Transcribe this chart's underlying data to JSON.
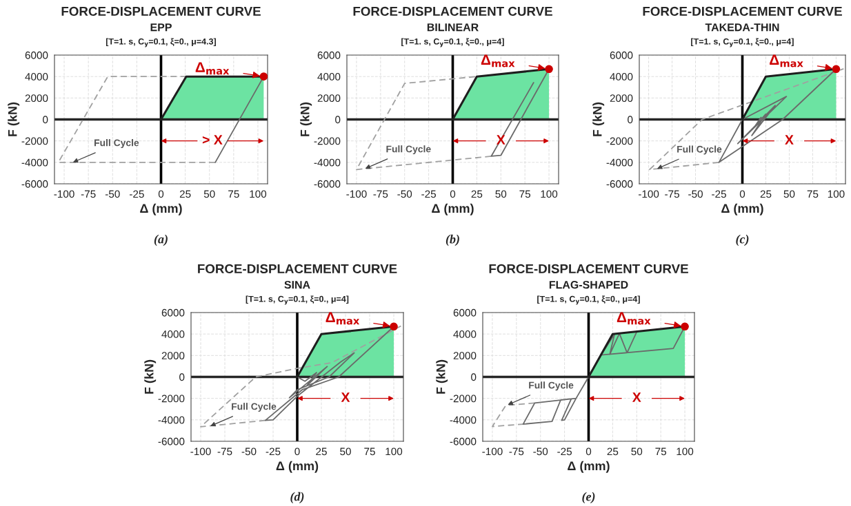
{
  "chart_data": [
    {
      "type": "line",
      "title": "FORCE-DISPLACEMENT CURVE",
      "subtitle": "EPP",
      "xlabel": "Δ (mm)",
      "ylabel": "F (kN)",
      "xlim": [
        -110,
        110
      ],
      "ylim": [
        -6000,
        6000
      ],
      "xticks": [
        -100,
        -75,
        -50,
        -25,
        0,
        25,
        50,
        75,
        100
      ],
      "yticks": [
        -6000,
        -4000,
        -2000,
        0,
        2000,
        4000,
        6000
      ],
      "grid": true,
      "ref_lines": [
        {
          "axis": "x",
          "value": 0,
          "color": "#000000"
        },
        {
          "axis": "y",
          "value": 0,
          "color": "#262626"
        }
      ],
      "annotations": [
        "[T=1. s, C$_{y}$=0.1, ξ=0., μ=4.3]",
        "(a)",
        "> X",
        {
          "text": "Δ$_{max}$",
          "x": 106,
          "y": 4000
        },
        {
          "text": "Full Cycle",
          "x": -91,
          "y": -4000
        }
      ],
      "series": [
        {
          "type": "area",
          "color": "#6ce3a2",
          "x": [
            0,
            26,
            106
          ],
          "values": [
            0,
            4000,
            4000
          ]
        },
        {
          "color": "#a0a0a0",
          "line_style": "dashed",
          "x": [
            56,
            -106,
            -55,
            26
          ],
          "values": [
            -4000,
            -4000,
            4000,
            4000
          ]
        },
        {
          "color": "#6a6a6a",
          "line_style": "solid",
          "x": [
            106,
            56
          ],
          "values": [
            4000,
            -4000
          ]
        },
        {
          "type": "scatter",
          "color": "#cc0000",
          "marker": "circle",
          "x": [
            106
          ],
          "values": [
            4000
          ]
        }
      ]
    },
    {
      "type": "line",
      "title": "FORCE-DISPLACEMENT CURVE",
      "subtitle": "BILINEAR",
      "xlabel": "Δ (mm)",
      "ylabel": "F (kN)",
      "xlim": [
        -110,
        110
      ],
      "ylim": [
        -6000,
        6000
      ],
      "xticks": [
        -100,
        -75,
        -50,
        -25,
        0,
        25,
        50,
        75,
        100
      ],
      "yticks": [
        -6000,
        -4000,
        -2000,
        0,
        2000,
        4000,
        6000
      ],
      "grid": true,
      "ref_lines": [
        {
          "axis": "x",
          "value": 0,
          "color": "#000000"
        },
        {
          "axis": "y",
          "value": 0,
          "color": "#262626"
        }
      ],
      "annotations": [
        "[T=1. s, C$_{y}$=0.1, ξ=0., μ=4]",
        "(b)",
        "X",
        {
          "text": "Δ$_{max}$",
          "x": 100,
          "y": 4700
        },
        {
          "text": "Full Cycle",
          "x": -91,
          "y": -4580
        }
      ],
      "series": [
        {
          "type": "area",
          "color": "#6ce3a2",
          "x": [
            0,
            25,
            100
          ],
          "values": [
            0,
            4000,
            4700
          ]
        },
        {
          "color": "#a0a0a0",
          "line_style": "dashed",
          "x": [
            40,
            -100,
            -50,
            25
          ],
          "values": [
            -3430,
            -4670,
            3360,
            4000
          ]
        },
        {
          "color": "#6a6a6a",
          "line_style": "solid",
          "x": [
            100,
            50,
            40,
            84
          ],
          "values": [
            4700,
            -3350,
            -3430,
            3430
          ]
        },
        {
          "type": "scatter",
          "color": "#cc0000",
          "marker": "circle",
          "x": [
            100
          ],
          "values": [
            4700
          ]
        }
      ]
    },
    {
      "type": "line",
      "title": "FORCE-DISPLACEMENT CURVE",
      "subtitle": "TAKEDA-THIN",
      "xlabel": "Δ (mm)",
      "ylabel": "F (kN)",
      "xlim": [
        -110,
        110
      ],
      "ylim": [
        -6000,
        6000
      ],
      "xticks": [
        -100,
        -75,
        -50,
        -25,
        0,
        25,
        50,
        75,
        100
      ],
      "yticks": [
        -6000,
        -4000,
        -2000,
        0,
        2000,
        4000,
        6000
      ],
      "grid": true,
      "ref_lines": [
        {
          "axis": "x",
          "value": 0,
          "color": "#000000"
        },
        {
          "axis": "y",
          "value": 0,
          "color": "#262626"
        }
      ],
      "annotations": [
        "[T=1. s, C$_{y}$=0.1, ξ=0., μ=4]",
        "(c)",
        "X",
        {
          "text": "Δ$_{max}$",
          "x": 100,
          "y": 4700
        },
        {
          "text": "Full Cycle",
          "x": -91,
          "y": -4600
        }
      ],
      "series": [
        {
          "type": "area",
          "color": "#6ce3a2",
          "x": [
            0,
            25,
            100
          ],
          "values": [
            0,
            4000,
            4700
          ]
        },
        {
          "color": "#a0a0a0",
          "line_style": "dashed",
          "x": [
            -25,
            -99,
            -43,
            108
          ],
          "values": [
            -4000,
            -4670,
            0,
            4720
          ]
        },
        {
          "color": "#6a6a6a",
          "line_style": "solid",
          "x": [
            100,
            43,
            -25,
            0,
            47,
            -5,
            35,
            10,
            25,
            12,
            20
          ],
          "values": [
            4700,
            0,
            -4000,
            0,
            2140,
            -2250,
            1300,
            -1500,
            500,
            -800,
            200
          ]
        },
        {
          "type": "scatter",
          "color": "#cc0000",
          "marker": "circle",
          "x": [
            100
          ],
          "values": [
            4700
          ]
        }
      ]
    },
    {
      "type": "line",
      "title": "FORCE-DISPLACEMENT CURVE",
      "subtitle": "SINA",
      "xlabel": "Δ (mm)",
      "ylabel": "F (kN)",
      "xlim": [
        -110,
        110
      ],
      "ylim": [
        -6000,
        6000
      ],
      "xticks": [
        -100,
        -75,
        -50,
        -25,
        0,
        25,
        50,
        75,
        100
      ],
      "yticks": [
        -6000,
        -4000,
        -2000,
        0,
        2000,
        4000,
        6000
      ],
      "grid": true,
      "ref_lines": [
        {
          "axis": "x",
          "value": 0,
          "color": "#000000"
        },
        {
          "axis": "y",
          "value": 0,
          "color": "#262626"
        }
      ],
      "annotations": [
        "[T=1. s, C$_{y}$=0.1, ξ=0., μ=4]",
        "(d)",
        "X",
        {
          "text": "Δ$_{max}$",
          "x": 100,
          "y": 4700
        },
        {
          "text": "Full Cycle",
          "x": -90,
          "y": -4580
        }
      ],
      "series": [
        {
          "type": "area",
          "color": "#6ce3a2",
          "x": [
            0,
            25,
            100
          ],
          "values": [
            0,
            4000,
            4700
          ]
        },
        {
          "color": "#a0a0a0",
          "line_style": "dashed",
          "x": [
            -33,
            -100,
            -43,
            0,
            36,
            108
          ],
          "values": [
            -4050,
            -4650,
            0,
            800,
            1330,
            4770
          ]
        },
        {
          "color": "#6a6a6a",
          "line_style": "solid",
          "x": [
            100,
            43,
            5,
            -33,
            -25,
            0,
            45,
            59,
            33,
            0,
            -8,
            31,
            10,
            20,
            8,
            0
          ],
          "values": [
            4700,
            0,
            -1200,
            -4050,
            -4000,
            -1800,
            1400,
            2240,
            0,
            -1200,
            -1930,
            970,
            -800,
            400,
            -400,
            0
          ]
        },
        {
          "type": "scatter",
          "color": "#cc0000",
          "marker": "circle",
          "x": [
            100
          ],
          "values": [
            4700
          ]
        }
      ]
    },
    {
      "type": "line",
      "title": "FORCE-DISPLACEMENT CURVE",
      "subtitle": "FLAG-SHAPED",
      "xlabel": "Δ (mm)",
      "ylabel": "F (kN)",
      "xlim": [
        -110,
        110
      ],
      "ylim": [
        -6000,
        6000
      ],
      "xticks": [
        -100,
        -75,
        -50,
        -25,
        0,
        25,
        50,
        75,
        100
      ],
      "yticks": [
        -6000,
        -4000,
        -2000,
        0,
        2000,
        4000,
        6000
      ],
      "grid": true,
      "ref_lines": [
        {
          "axis": "x",
          "value": 0,
          "color": "#000000"
        },
        {
          "axis": "y",
          "value": 0,
          "color": "#262626"
        }
      ],
      "annotations": [
        "[T=1. s, C$_{y}$=0.1, ξ=0., μ=4]",
        "(e)",
        "X",
        {
          "text": "Δ$_{max}$",
          "x": 100,
          "y": 4700
        },
        {
          "text": "Full Cycle",
          "x": -84,
          "y": -2600
        }
      ],
      "series": [
        {
          "type": "area",
          "color": "#6ce3a2",
          "x": [
            0,
            25,
            100
          ],
          "values": [
            0,
            4000,
            4700
          ]
        },
        {
          "color": "#a0a0a0",
          "line_style": "dashed",
          "x": [
            -56,
            -86,
            -100,
            -68
          ],
          "values": [
            -2430,
            -2650,
            -4620,
            -4400
          ]
        },
        {
          "color": "#6a6a6a",
          "line_style": "solid",
          "x": [
            100,
            88,
            13,
            27,
            22,
            32,
            40,
            50,
            40,
            13,
            0,
            -13,
            -25,
            -28,
            -18,
            -29,
            -38,
            -68,
            -56,
            -13
          ],
          "values": [
            4700,
            2650,
            2050,
            4000,
            2100,
            4050,
            2250,
            4200,
            2250,
            2050,
            0,
            -2000,
            -4000,
            -4050,
            -2050,
            -2150,
            -4150,
            -4400,
            -2430,
            -2000
          ]
        },
        {
          "type": "scatter",
          "color": "#cc0000",
          "marker": "circle",
          "x": [
            100
          ],
          "values": [
            4700
          ]
        }
      ]
    }
  ]
}
